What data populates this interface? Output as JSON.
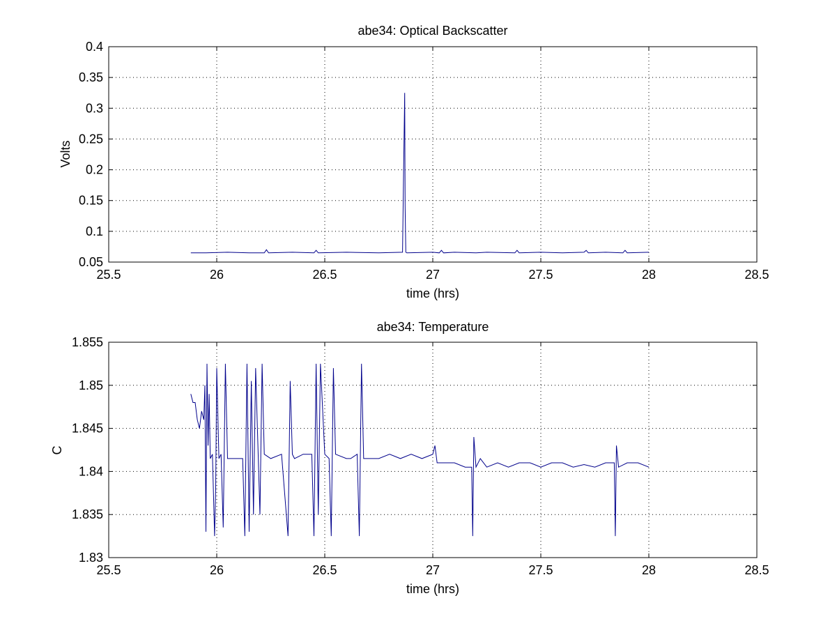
{
  "chart_data": [
    {
      "type": "line",
      "title": "abe34: Optical Backscatter",
      "xlabel": "time (hrs)",
      "ylabel": "Volts",
      "xlim": [
        25.5,
        28.5
      ],
      "ylim": [
        0.05,
        0.4
      ],
      "xticks": [
        25.5,
        26,
        26.5,
        27,
        27.5,
        28,
        28.5
      ],
      "xtick_labels": [
        "25.5",
        "26",
        "26.5",
        "27",
        "27.5",
        "28",
        "28.5"
      ],
      "yticks": [
        0.05,
        0.1,
        0.15,
        0.2,
        0.25,
        0.3,
        0.35,
        0.4
      ],
      "ytick_labels": [
        "0.05",
        "0.1",
        "0.15",
        "0.2",
        "0.25",
        "0.3",
        "0.35",
        "0.4"
      ],
      "grid": true,
      "series": [
        {
          "color": "#00008b",
          "x": [
            25.88,
            25.95,
            26.05,
            26.15,
            26.22,
            26.23,
            26.24,
            26.35,
            26.45,
            26.46,
            26.47,
            26.6,
            26.75,
            26.86,
            26.865,
            26.87,
            26.872,
            26.875,
            26.88,
            27.0,
            27.03,
            27.04,
            27.05,
            27.1,
            27.2,
            27.25,
            27.38,
            27.39,
            27.4,
            27.5,
            27.6,
            27.7,
            27.71,
            27.72,
            27.8,
            27.88,
            27.89,
            27.9,
            28.0
          ],
          "y": [
            0.065,
            0.065,
            0.066,
            0.065,
            0.065,
            0.07,
            0.065,
            0.066,
            0.065,
            0.069,
            0.065,
            0.066,
            0.065,
            0.066,
            0.195,
            0.325,
            0.14,
            0.066,
            0.065,
            0.066,
            0.065,
            0.069,
            0.065,
            0.066,
            0.065,
            0.066,
            0.065,
            0.069,
            0.065,
            0.066,
            0.065,
            0.066,
            0.069,
            0.065,
            0.066,
            0.065,
            0.069,
            0.065,
            0.066
          ]
        }
      ]
    },
    {
      "type": "line",
      "title": "abe34: Temperature",
      "xlabel": "time (hrs)",
      "ylabel": "C",
      "xlim": [
        25.5,
        28.5
      ],
      "ylim": [
        1.83,
        1.855
      ],
      "xticks": [
        25.5,
        26,
        26.5,
        27,
        27.5,
        28,
        28.5
      ],
      "xtick_labels": [
        "25.5",
        "26",
        "26.5",
        "27",
        "27.5",
        "28",
        "28.5"
      ],
      "yticks": [
        1.83,
        1.835,
        1.84,
        1.845,
        1.85,
        1.855
      ],
      "ytick_labels": [
        "1.83",
        "1.835",
        "1.84",
        "1.845",
        "1.85",
        "1.855"
      ],
      "grid": true,
      "series": [
        {
          "color": "#00008b",
          "x": [
            25.88,
            25.89,
            25.9,
            25.91,
            25.92,
            25.93,
            25.94,
            25.945,
            25.95,
            25.955,
            25.96,
            25.965,
            25.97,
            25.98,
            25.99,
            25.995,
            26.0,
            26.01,
            26.02,
            26.03,
            26.04,
            26.05,
            26.08,
            26.1,
            26.12,
            26.13,
            26.14,
            26.15,
            26.16,
            26.17,
            26.18,
            26.2,
            26.21,
            26.22,
            26.25,
            26.3,
            26.33,
            26.34,
            26.35,
            26.36,
            26.4,
            26.44,
            26.45,
            26.46,
            26.47,
            26.48,
            26.5,
            26.52,
            26.53,
            26.54,
            26.55,
            26.6,
            26.62,
            26.65,
            26.66,
            26.67,
            26.68,
            26.7,
            26.75,
            26.8,
            26.85,
            26.9,
            26.95,
            27.0,
            27.01,
            27.02,
            27.05,
            27.1,
            27.15,
            27.18,
            27.185,
            27.19,
            27.2,
            27.22,
            27.25,
            27.3,
            27.35,
            27.4,
            27.45,
            27.5,
            27.55,
            27.6,
            27.65,
            27.7,
            27.75,
            27.8,
            27.84,
            27.845,
            27.85,
            27.86,
            27.9,
            27.95,
            28.0
          ],
          "y": [
            1.849,
            1.848,
            1.848,
            1.846,
            1.845,
            1.847,
            1.846,
            1.85,
            1.833,
            1.8525,
            1.843,
            1.849,
            1.8415,
            1.842,
            1.8325,
            1.838,
            1.852,
            1.8415,
            1.842,
            1.8335,
            1.8525,
            1.8415,
            1.8415,
            1.8415,
            1.8415,
            1.8325,
            1.8525,
            1.833,
            1.8505,
            1.835,
            1.852,
            1.835,
            1.8525,
            1.842,
            1.8415,
            1.842,
            1.8325,
            1.8505,
            1.842,
            1.8415,
            1.842,
            1.842,
            1.8325,
            1.8525,
            1.835,
            1.8525,
            1.842,
            1.8415,
            1.8325,
            1.852,
            1.842,
            1.8415,
            1.8415,
            1.842,
            1.8325,
            1.8525,
            1.8415,
            1.8415,
            1.8415,
            1.842,
            1.8415,
            1.842,
            1.8415,
            1.842,
            1.843,
            1.841,
            1.841,
            1.841,
            1.8405,
            1.8405,
            1.8325,
            1.844,
            1.8405,
            1.8415,
            1.8405,
            1.841,
            1.8405,
            1.841,
            1.841,
            1.8405,
            1.841,
            1.841,
            1.8405,
            1.8408,
            1.8405,
            1.841,
            1.841,
            1.8325,
            1.843,
            1.8405,
            1.841,
            1.841,
            1.8405
          ]
        }
      ]
    }
  ]
}
